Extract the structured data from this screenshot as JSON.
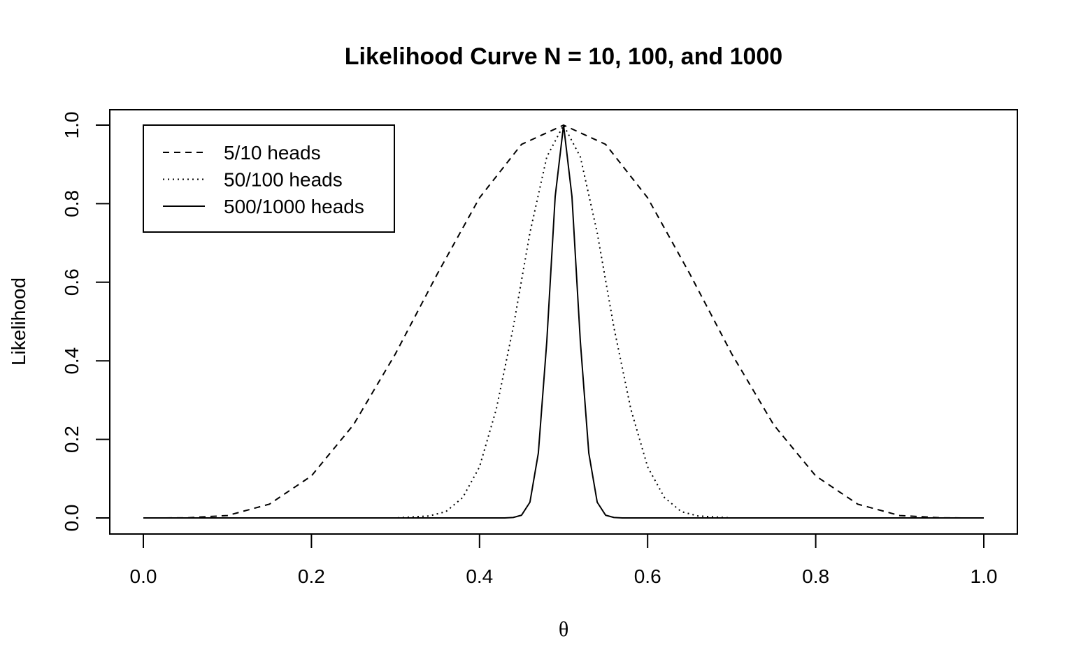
{
  "chart_data": {
    "type": "line",
    "title": "Likelihood Curve N = 10, 100, and 1000",
    "xlabel": "θ",
    "ylabel": "Likelihood",
    "xlim": [
      0,
      1
    ],
    "ylim": [
      0,
      1
    ],
    "x_ticks": [
      "0.0",
      "0.2",
      "0.4",
      "0.6",
      "0.8",
      "1.0"
    ],
    "x_tick_values": [
      0,
      0.2,
      0.4,
      0.6,
      0.8,
      1.0
    ],
    "y_ticks": [
      "0.0",
      "0.2",
      "0.4",
      "0.6",
      "0.8",
      "1.0"
    ],
    "y_tick_values": [
      0,
      0.2,
      0.4,
      0.6,
      0.8,
      1.0
    ],
    "grid": false,
    "legend_position": "top-left",
    "series": [
      {
        "name": "5/10 heads",
        "linestyle": "dashed",
        "color": "#000000",
        "x": [
          0.0,
          0.05,
          0.1,
          0.15,
          0.2,
          0.25,
          0.3,
          0.35,
          0.4,
          0.45,
          0.5,
          0.55,
          0.6,
          0.65,
          0.7,
          0.75,
          0.8,
          0.85,
          0.9,
          0.95,
          1.0
        ],
        "y": [
          0.0,
          0.0002,
          0.006,
          0.035,
          0.107,
          0.237,
          0.418,
          0.622,
          0.815,
          0.951,
          1.0,
          0.951,
          0.815,
          0.622,
          0.418,
          0.237,
          0.107,
          0.035,
          0.006,
          0.0002,
          0.0
        ]
      },
      {
        "name": "50/100 heads",
        "linestyle": "dotted",
        "color": "#000000",
        "x": [
          0.0,
          0.3,
          0.34,
          0.36,
          0.38,
          0.4,
          0.42,
          0.44,
          0.46,
          0.48,
          0.5,
          0.52,
          0.54,
          0.56,
          0.58,
          0.6,
          0.62,
          0.64,
          0.66,
          0.7,
          1.0
        ],
        "y": [
          0.0,
          0.0,
          0.005,
          0.016,
          0.052,
          0.13,
          0.277,
          0.484,
          0.726,
          0.919,
          1.0,
          0.919,
          0.726,
          0.484,
          0.277,
          0.13,
          0.052,
          0.016,
          0.005,
          0.0,
          0.0
        ]
      },
      {
        "name": "500/1000 heads",
        "linestyle": "solid",
        "color": "#000000",
        "x": [
          0.0,
          0.43,
          0.44,
          0.45,
          0.46,
          0.47,
          0.48,
          0.49,
          0.5,
          0.51,
          0.52,
          0.53,
          0.54,
          0.55,
          0.56,
          0.57,
          1.0
        ],
        "y": [
          0.0,
          0.0,
          0.001,
          0.007,
          0.04,
          0.165,
          0.449,
          0.818,
          1.0,
          0.818,
          0.449,
          0.165,
          0.04,
          0.007,
          0.001,
          0.0,
          0.0
        ]
      }
    ]
  }
}
